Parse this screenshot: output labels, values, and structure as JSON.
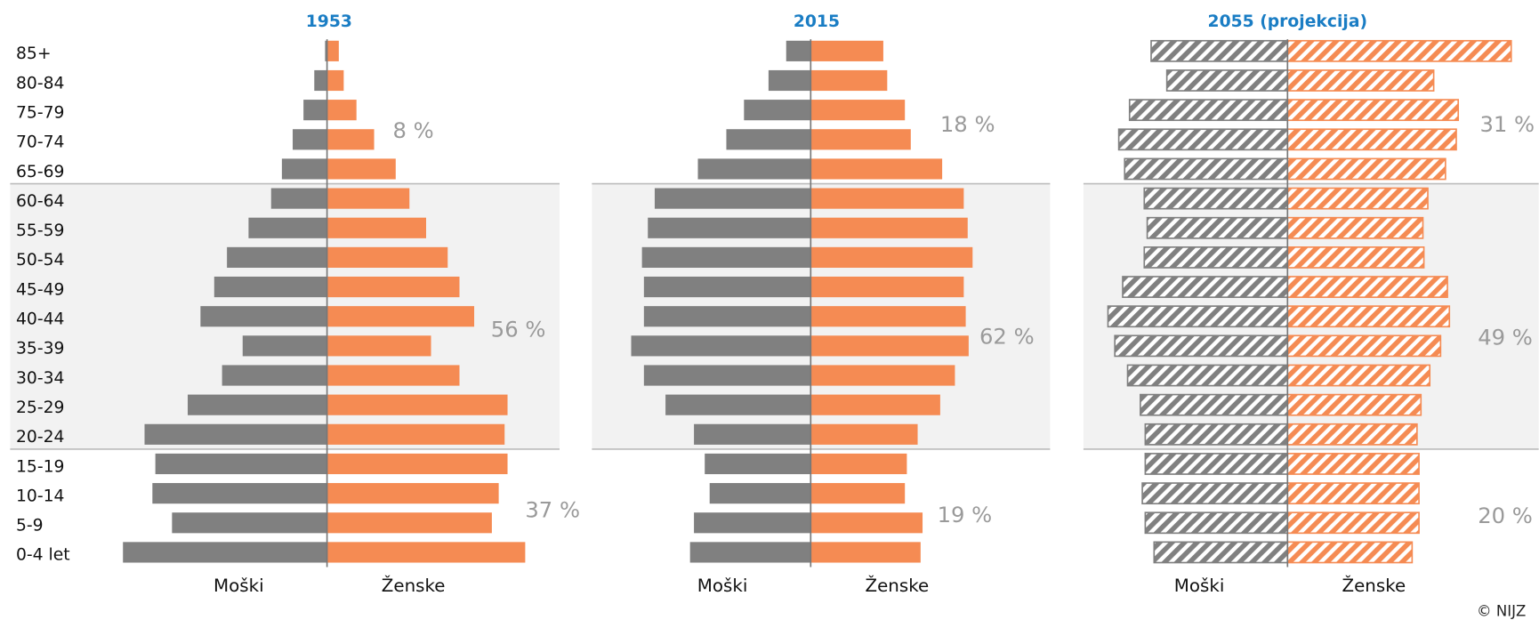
{
  "chart_data": [
    {
      "type": "pyramid",
      "title": "1953",
      "categories": [
        "85+",
        "80-84",
        "75-79",
        "70-74",
        "65-69",
        "60-64",
        "55-59",
        "50-54",
        "45-49",
        "40-44",
        "35-39",
        "30-34",
        "25-29",
        "20-24",
        "15-19",
        "10-14",
        "5-9",
        "0-4 let"
      ],
      "series": [
        {
          "name": "Moški",
          "color": "#808080",
          "values": [
            2,
            13,
            24,
            35,
            46,
            57,
            80,
            102,
            115,
            129,
            86,
            107,
            142,
            186,
            175,
            178,
            158,
            208
          ]
        },
        {
          "name": "Ženske",
          "color": "#f58b53",
          "values": [
            12,
            17,
            30,
            48,
            70,
            84,
            101,
            123,
            135,
            150,
            106,
            135,
            184,
            181,
            184,
            175,
            168,
            202
          ]
        }
      ],
      "annotations": [
        "8 %",
        "56 %",
        "37 %"
      ],
      "hatched": false
    },
    {
      "type": "pyramid",
      "title": "2015",
      "series": [
        {
          "name": "Moški",
          "color": "#808080",
          "values": [
            25,
            43,
            68,
            86,
            115,
            159,
            166,
            172,
            170,
            170,
            183,
            170,
            148,
            119,
            108,
            103,
            119,
            123
          ]
        },
        {
          "name": "Ženske",
          "color": "#f58b53",
          "values": [
            74,
            78,
            96,
            102,
            134,
            156,
            160,
            165,
            156,
            158,
            161,
            147,
            132,
            109,
            98,
            96,
            114,
            112
          ]
        }
      ],
      "annotations": [
        "18 %",
        "62 %",
        "19 %"
      ],
      "hatched": false
    },
    {
      "type": "pyramid",
      "title": "2055 (projekcija)",
      "series": [
        {
          "name": "Moški",
          "color": "#808080",
          "values": [
            139,
            123,
            161,
            172,
            166,
            146,
            143,
            146,
            168,
            183,
            176,
            163,
            150,
            145,
            145,
            148,
            145,
            136
          ]
        },
        {
          "name": "Ženske",
          "color": "#f58b53",
          "values": [
            228,
            149,
            174,
            172,
            161,
            143,
            138,
            139,
            163,
            165,
            156,
            145,
            136,
            132,
            134,
            134,
            134,
            127
          ]
        }
      ],
      "annotations": [
        "31 %",
        "49 %",
        "20 %"
      ],
      "hatched": true
    }
  ],
  "source": "© NIJZ"
}
